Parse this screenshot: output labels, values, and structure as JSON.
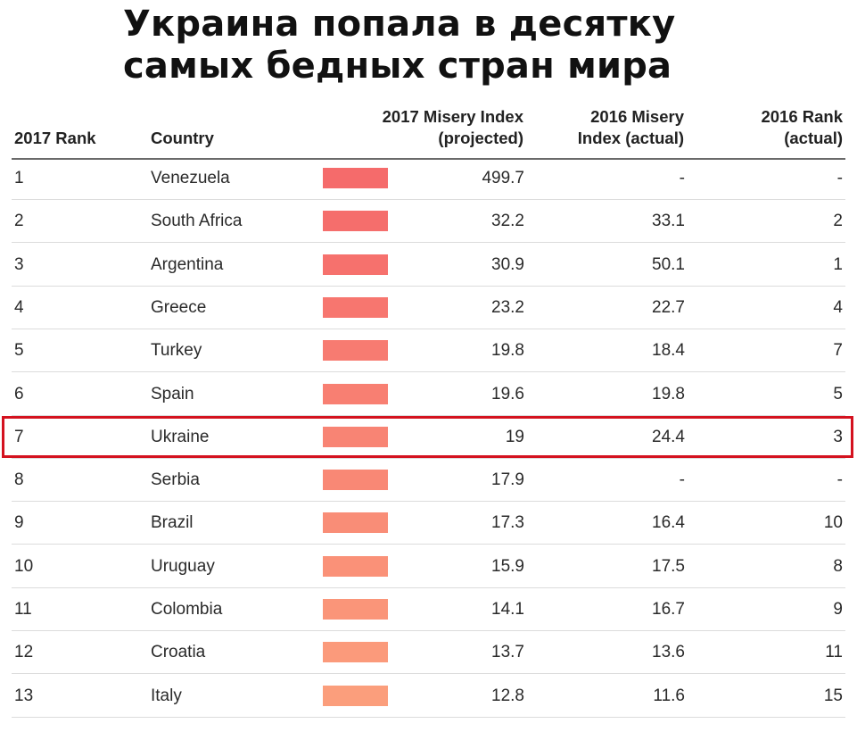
{
  "headline": {
    "line1": "Украина попала в десятку",
    "line2": "самых бедных стран мира"
  },
  "chart_data": {
    "type": "table",
    "columns": {
      "rank_2017": "2017 Rank",
      "country": "Country",
      "misery_2017": [
        "2017 Misery Index",
        "(projected)"
      ],
      "misery_2016": [
        "2016 Misery",
        "Index (actual)"
      ],
      "rank_2016": [
        "2016 Rank",
        "(actual)"
      ]
    },
    "rows": [
      {
        "rank_2017": "1",
        "country": "Venezuela",
        "misery_2017": "499.7",
        "misery_2016": "-",
        "rank_2016": "-",
        "bar_color": "#f56b6b"
      },
      {
        "rank_2017": "2",
        "country": "South Africa",
        "misery_2017": "32.2",
        "misery_2016": "33.1",
        "rank_2016": "2",
        "bar_color": "#f56e6c"
      },
      {
        "rank_2017": "3",
        "country": "Argentina",
        "misery_2017": "30.9",
        "misery_2016": "50.1",
        "rank_2016": "1",
        "bar_color": "#f6716d"
      },
      {
        "rank_2017": "4",
        "country": "Greece",
        "misery_2017": "23.2",
        "misery_2016": "22.7",
        "rank_2016": "4",
        "bar_color": "#f7766f"
      },
      {
        "rank_2017": "5",
        "country": "Turkey",
        "misery_2017": "19.8",
        "misery_2016": "18.4",
        "rank_2016": "7",
        "bar_color": "#f77b71"
      },
      {
        "rank_2017": "6",
        "country": "Spain",
        "misery_2017": "19.6",
        "misery_2016": "19.8",
        "rank_2016": "5",
        "bar_color": "#f87f72"
      },
      {
        "rank_2017": "7",
        "country": "Ukraine",
        "misery_2017": "19",
        "misery_2016": "24.4",
        "rank_2016": "3",
        "bar_color": "#f88474",
        "highlighted": true
      },
      {
        "rank_2017": "8",
        "country": "Serbia",
        "misery_2017": "17.9",
        "misery_2016": "-",
        "rank_2016": "-",
        "bar_color": "#f98875"
      },
      {
        "rank_2017": "9",
        "country": "Brazil",
        "misery_2017": "17.3",
        "misery_2016": "16.4",
        "rank_2016": "10",
        "bar_color": "#f98d77"
      },
      {
        "rank_2017": "10",
        "country": "Uruguay",
        "misery_2017": "15.9",
        "misery_2016": "17.5",
        "rank_2016": "8",
        "bar_color": "#fa9178"
      },
      {
        "rank_2017": "11",
        "country": "Colombia",
        "misery_2017": "14.1",
        "misery_2016": "16.7",
        "rank_2016": "9",
        "bar_color": "#fa9579"
      },
      {
        "rank_2017": "12",
        "country": "Croatia",
        "misery_2017": "13.7",
        "misery_2016": "13.6",
        "rank_2016": "11",
        "bar_color": "#fb9a7b"
      },
      {
        "rank_2017": "13",
        "country": "Italy",
        "misery_2017": "12.8",
        "misery_2016": "11.6",
        "rank_2016": "15",
        "bar_color": "#fb9e7c"
      }
    ]
  },
  "colors": {
    "highlight_border": "#d4121f",
    "header_rule": "#6a6a6a",
    "row_rule": "#dcdcdc"
  }
}
